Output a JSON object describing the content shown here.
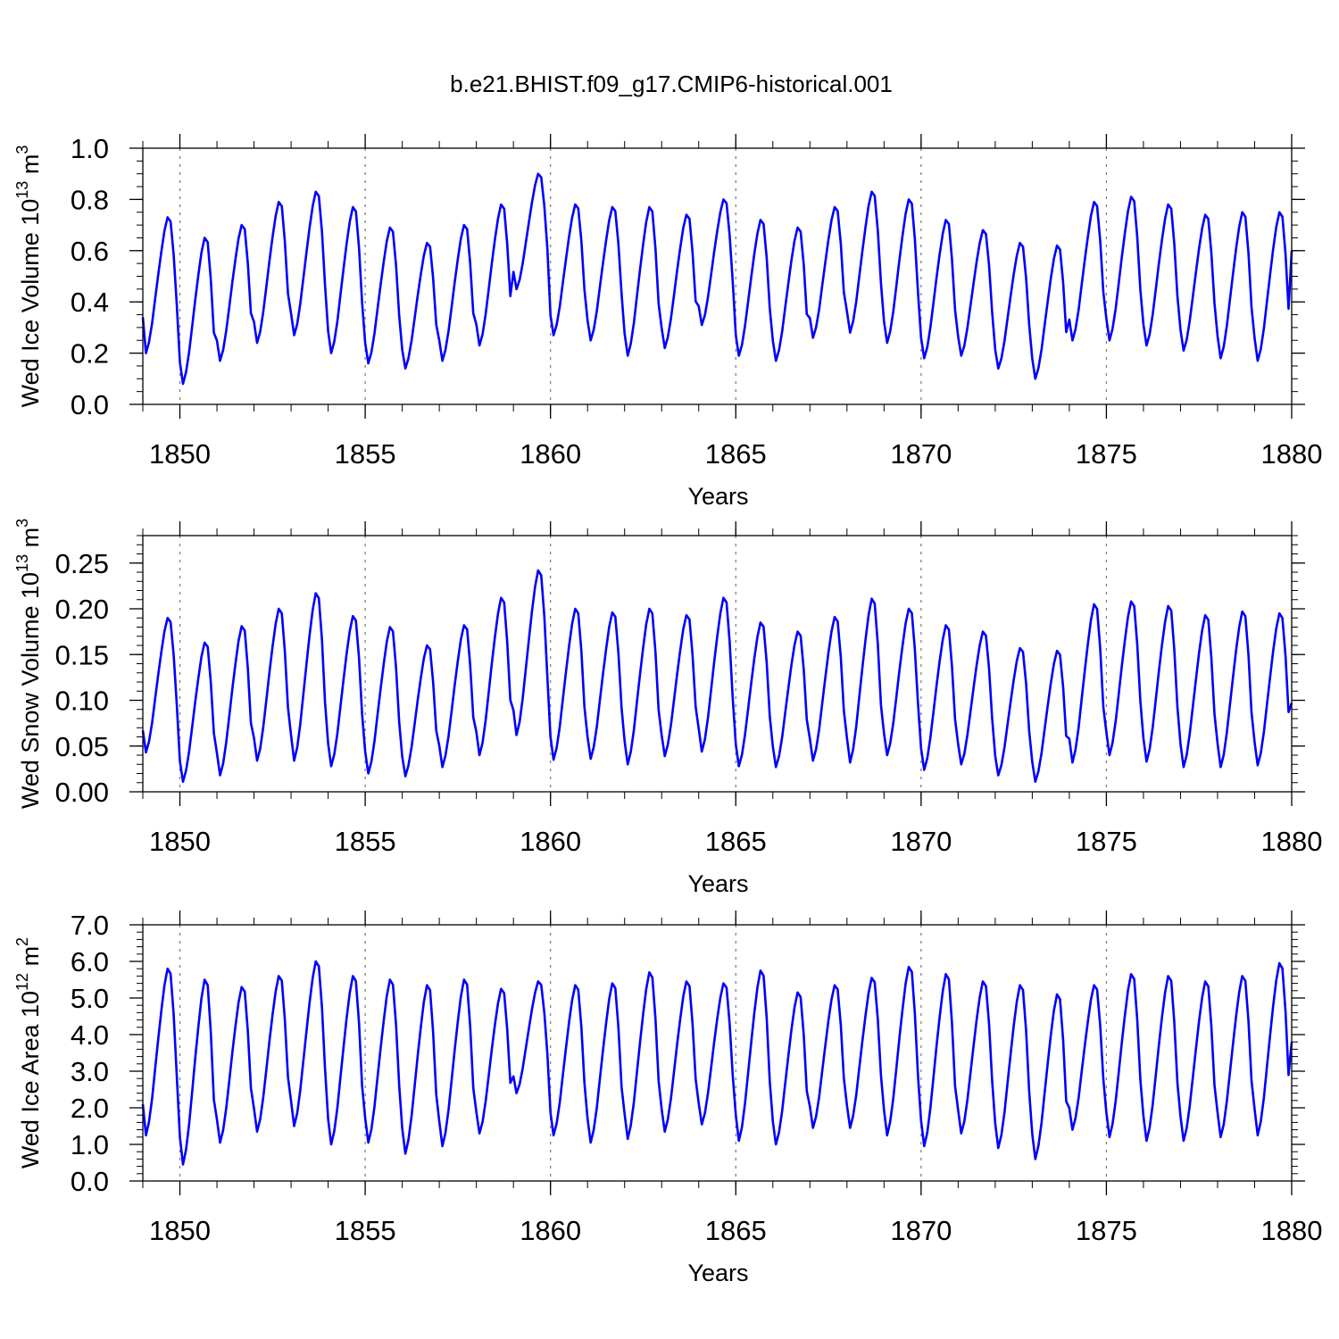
{
  "figure": {
    "title": "b.e21.BHIST.f09_g17.CMIP6-historical.001"
  },
  "colors": {
    "line": "#0000ff",
    "grid": "#777777"
  },
  "chart_data": [
    {
      "type": "line",
      "ylabel_main": "Wed Ice Volume 10",
      "ylabel_exp": "13",
      "ylabel_unit": " m",
      "ylabel_unit_exp": "3",
      "xlabel": "Years",
      "xlim": [
        1849,
        1880
      ],
      "ylim": [
        0,
        1.0
      ],
      "yticks": [
        0.0,
        0.2,
        0.4,
        0.6,
        0.8,
        1.0
      ],
      "ytick_labels": [
        "0.0",
        "0.2",
        "0.4",
        "0.6",
        "0.8",
        "1.0"
      ],
      "xticks": [
        1850,
        1855,
        1860,
        1865,
        1870,
        1875,
        1880
      ],
      "xtick_labels": [
        "1850",
        "1855",
        "1860",
        "1865",
        "1870",
        "1875",
        "1880"
      ],
      "y_minor_step": 0.05,
      "x_minor_step": 1,
      "series": [
        {
          "name": "Wed Ice Volume",
          "min_values": [
            0.2,
            0.08,
            0.17,
            0.24,
            0.27,
            0.2,
            0.16,
            0.14,
            0.17,
            0.23,
            0.45,
            0.27,
            0.25,
            0.19,
            0.22,
            0.31,
            0.19,
            0.17,
            0.26,
            0.28,
            0.24,
            0.18,
            0.19,
            0.14,
            0.1,
            0.25,
            0.25,
            0.23,
            0.21,
            0.18,
            0.17
          ],
          "max_values": [
            0.73,
            0.65,
            0.7,
            0.79,
            0.83,
            0.77,
            0.69,
            0.63,
            0.7,
            0.78,
            0.9,
            0.78,
            0.77,
            0.77,
            0.74,
            0.8,
            0.72,
            0.69,
            0.77,
            0.83,
            0.8,
            0.72,
            0.68,
            0.63,
            0.62,
            0.79,
            0.81,
            0.78,
            0.74,
            0.75,
            0.75
          ],
          "start": 0.34,
          "end": 0.6
        }
      ]
    },
    {
      "type": "line",
      "ylabel_main": "Wed Snow Volume 10",
      "ylabel_exp": "13",
      "ylabel_unit": " m",
      "ylabel_unit_exp": "3",
      "xlabel": "Years",
      "xlim": [
        1849,
        1880
      ],
      "ylim": [
        0,
        0.28
      ],
      "yticks": [
        0.0,
        0.05,
        0.1,
        0.15,
        0.2,
        0.25
      ],
      "ytick_labels": [
        "0.00",
        "0.05",
        "0.10",
        "0.15",
        "0.20",
        "0.25"
      ],
      "xticks": [
        1850,
        1855,
        1860,
        1865,
        1870,
        1875,
        1880
      ],
      "xtick_labels": [
        "1850",
        "1855",
        "1860",
        "1865",
        "1870",
        "1875",
        "1880"
      ],
      "y_minor_step": 0.01,
      "x_minor_step": 1,
      "series": [
        {
          "name": "Wed Snow Volume",
          "min_values": [
            0.043,
            0.011,
            0.018,
            0.034,
            0.034,
            0.028,
            0.02,
            0.017,
            0.027,
            0.04,
            0.062,
            0.035,
            0.036,
            0.03,
            0.039,
            0.044,
            0.028,
            0.027,
            0.034,
            0.032,
            0.04,
            0.024,
            0.03,
            0.018,
            0.011,
            0.032,
            0.04,
            0.033,
            0.027,
            0.027,
            0.029
          ],
          "max_values": [
            0.19,
            0.163,
            0.181,
            0.2,
            0.217,
            0.192,
            0.18,
            0.16,
            0.182,
            0.212,
            0.242,
            0.2,
            0.196,
            0.2,
            0.193,
            0.212,
            0.185,
            0.175,
            0.191,
            0.211,
            0.2,
            0.182,
            0.175,
            0.157,
            0.154,
            0.205,
            0.208,
            0.203,
            0.193,
            0.197,
            0.195
          ],
          "start": 0.067,
          "end": 0.097
        }
      ]
    },
    {
      "type": "line",
      "ylabel_main": "Wed Ice Area 10",
      "ylabel_exp": "12",
      "ylabel_unit": " m",
      "ylabel_unit_exp": "2",
      "xlabel": "Years",
      "xlim": [
        1849,
        1880
      ],
      "ylim": [
        0,
        7.0
      ],
      "yticks": [
        0.0,
        1.0,
        2.0,
        3.0,
        4.0,
        5.0,
        6.0,
        7.0
      ],
      "ytick_labels": [
        "0.0",
        "1.0",
        "2.0",
        "3.0",
        "4.0",
        "5.0",
        "6.0",
        "7.0"
      ],
      "xticks": [
        1850,
        1855,
        1860,
        1865,
        1870,
        1875,
        1880
      ],
      "xtick_labels": [
        "1850",
        "1855",
        "1860",
        "1865",
        "1870",
        "1875",
        "1880"
      ],
      "y_minor_step": 0.2,
      "x_minor_step": 1,
      "series": [
        {
          "name": "Wed Ice Area",
          "min_values": [
            1.25,
            0.45,
            1.05,
            1.35,
            1.5,
            1.0,
            1.05,
            0.75,
            0.95,
            1.3,
            2.4,
            1.25,
            1.05,
            1.15,
            1.35,
            1.55,
            1.1,
            1.0,
            1.45,
            1.45,
            1.25,
            0.95,
            1.3,
            0.9,
            0.6,
            1.4,
            1.2,
            1.1,
            1.1,
            1.2,
            1.25
          ],
          "max_values": [
            5.8,
            5.5,
            5.3,
            5.6,
            6.0,
            5.6,
            5.5,
            5.35,
            5.5,
            5.25,
            5.45,
            5.35,
            5.4,
            5.7,
            5.45,
            5.4,
            5.75,
            5.15,
            5.35,
            5.55,
            5.85,
            5.65,
            5.45,
            5.35,
            5.1,
            5.35,
            5.65,
            5.6,
            5.45,
            5.6,
            5.95
          ],
          "start": 2.1,
          "end": 3.8
        }
      ]
    }
  ]
}
